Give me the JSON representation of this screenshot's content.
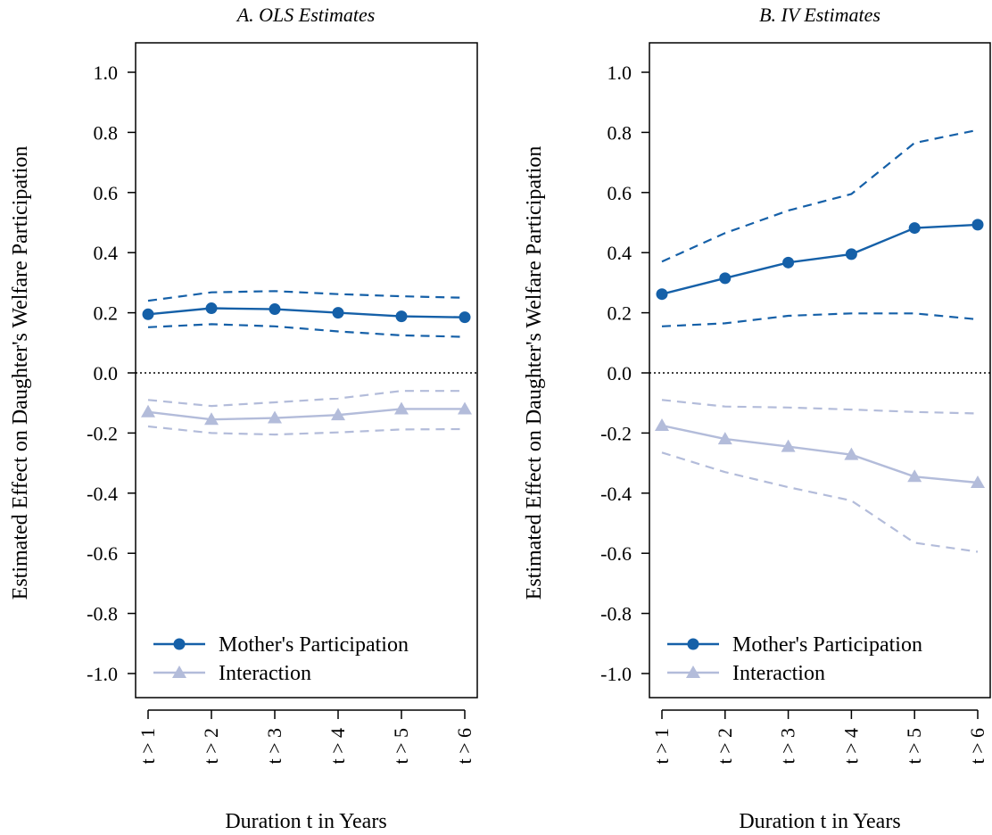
{
  "chart_data": [
    {
      "type": "line",
      "title": "A. OLS Estimates",
      "xlabel": "Duration t in Years",
      "ylabel": "Estimated Effect on Daughter's Welfare Participation",
      "categories": [
        "t > 1",
        "t > 2",
        "t > 3",
        "t > 4",
        "t > 5",
        "t > 6"
      ],
      "ylim": [
        -1.0,
        1.0
      ],
      "yticks": [
        "1.0",
        "0.8",
        "0.6",
        "0.4",
        "0.2",
        "0.0",
        "-0.2",
        "-0.4",
        "-0.6",
        "-0.8",
        "-1.0"
      ],
      "zero_line": true,
      "legend_position": "bottom-left",
      "series": [
        {
          "name": "Mother's Participation",
          "color": "#1560a8",
          "marker": "circle",
          "values": [
            0.195,
            0.215,
            0.212,
            0.2,
            0.188,
            0.185
          ],
          "upper": [
            0.24,
            0.268,
            0.272,
            0.262,
            0.255,
            0.25
          ],
          "lower": [
            0.152,
            0.162,
            0.155,
            0.138,
            0.125,
            0.12
          ]
        },
        {
          "name": "Interaction",
          "color": "#b3bcda",
          "marker": "triangle",
          "values": [
            -0.13,
            -0.155,
            -0.15,
            -0.14,
            -0.12,
            -0.12
          ],
          "upper": [
            -0.09,
            -0.11,
            -0.098,
            -0.085,
            -0.06,
            -0.06
          ],
          "lower": [
            -0.178,
            -0.2,
            -0.205,
            -0.198,
            -0.188,
            -0.187
          ]
        }
      ]
    },
    {
      "type": "line",
      "title": "B. IV Estimates",
      "xlabel": "Duration t in Years",
      "ylabel": "Estimated Effect on Daughter's Welfare Participation",
      "categories": [
        "t > 1",
        "t > 2",
        "t > 3",
        "t > 4",
        "t > 5",
        "t > 6"
      ],
      "ylim": [
        -1.0,
        1.0
      ],
      "yticks": [
        "1.0",
        "0.8",
        "0.6",
        "0.4",
        "0.2",
        "0.0",
        "-0.2",
        "-0.4",
        "-0.6",
        "-0.8",
        "-1.0"
      ],
      "zero_line": true,
      "legend_position": "bottom-left",
      "series": [
        {
          "name": "Mother's Participation",
          "color": "#1560a8",
          "marker": "circle",
          "values": [
            0.262,
            0.315,
            0.367,
            0.395,
            0.482,
            0.493
          ],
          "upper": [
            0.37,
            0.465,
            0.54,
            0.595,
            0.765,
            0.808
          ],
          "lower": [
            0.155,
            0.165,
            0.19,
            0.198,
            0.198,
            0.178
          ]
        },
        {
          "name": "Interaction",
          "color": "#b3bcda",
          "marker": "triangle",
          "values": [
            -0.175,
            -0.22,
            -0.245,
            -0.272,
            -0.345,
            -0.365
          ],
          "upper": [
            -0.09,
            -0.112,
            -0.115,
            -0.122,
            -0.13,
            -0.135
          ],
          "lower": [
            -0.265,
            -0.33,
            -0.38,
            -0.425,
            -0.565,
            -0.595
          ]
        }
      ]
    }
  ]
}
